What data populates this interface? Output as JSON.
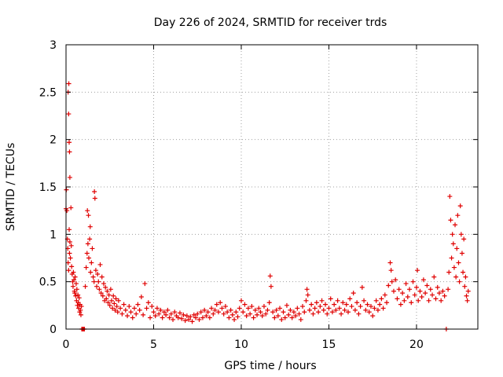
{
  "chart_data": {
    "type": "scatter",
    "title": "Day 226 of 2024, SRMTID for receiver trds",
    "xlabel": "GPS time / hours",
    "ylabel": "SRMTID / TECUs",
    "xlim": [
      0,
      23.5
    ],
    "ylim": [
      0,
      3
    ],
    "grid": true,
    "marker": "+",
    "color": "#e00000",
    "x_ticks": [
      {
        "value": 0,
        "label": "0"
      },
      {
        "value": 5,
        "label": "5"
      },
      {
        "value": 10,
        "label": "10"
      },
      {
        "value": 15,
        "label": "15"
      },
      {
        "value": 20,
        "label": "20"
      }
    ],
    "y_ticks": [
      {
        "value": 0,
        "label": "0"
      },
      {
        "value": 0.5,
        "label": "0.5"
      },
      {
        "value": 1,
        "label": "1"
      },
      {
        "value": 1.5,
        "label": "1.5"
      },
      {
        "value": 2,
        "label": "2"
      },
      {
        "value": 2.5,
        "label": "2.5"
      },
      {
        "value": 3,
        "label": "3"
      }
    ],
    "series": [
      {
        "name": "SRMTID",
        "points": [
          [
            0.0,
            1.27
          ],
          [
            0.02,
            1.47
          ],
          [
            0.05,
            1.25
          ],
          [
            0.08,
            0.95
          ],
          [
            0.1,
            0.85
          ],
          [
            0.12,
            0.7
          ],
          [
            0.15,
            0.62
          ],
          [
            0.18,
            1.05
          ],
          [
            0.2,
            0.8
          ],
          [
            0.22,
            0.92
          ],
          [
            0.25,
            0.75
          ],
          [
            0.28,
            1.28
          ],
          [
            0.3,
            0.88
          ],
          [
            0.32,
            0.66
          ],
          [
            0.35,
            0.58
          ],
          [
            0.38,
            0.5
          ],
          [
            0.12,
            2.5
          ],
          [
            0.15,
            2.27
          ],
          [
            0.18,
            1.97
          ],
          [
            0.2,
            1.87
          ],
          [
            0.22,
            1.6
          ],
          [
            0.16,
            2.59
          ],
          [
            0.4,
            0.45
          ],
          [
            0.42,
            0.6
          ],
          [
            0.45,
            0.52
          ],
          [
            0.48,
            0.4
          ],
          [
            0.5,
            0.38
          ],
          [
            0.52,
            0.55
          ],
          [
            0.55,
            0.35
          ],
          [
            0.58,
            0.48
          ],
          [
            0.6,
            0.3
          ],
          [
            0.62,
            0.42
          ],
          [
            0.65,
            0.25
          ],
          [
            0.68,
            0.36
          ],
          [
            0.7,
            0.28
          ],
          [
            0.72,
            0.22
          ],
          [
            0.75,
            0.33
          ],
          [
            0.78,
            0.18
          ],
          [
            0.8,
            0.26
          ],
          [
            0.82,
            0.2
          ],
          [
            0.85,
            0.15
          ],
          [
            0.88,
            0.24
          ],
          [
            0.9,
            0.0
          ],
          [
            0.95,
            0.0
          ],
          [
            1.0,
            0.0
          ],
          [
            1.05,
            0.0
          ],
          [
            1.1,
            0.45
          ],
          [
            1.15,
            0.65
          ],
          [
            1.2,
            0.8
          ],
          [
            1.22,
            1.25
          ],
          [
            1.25,
            0.9
          ],
          [
            1.28,
            1.2
          ],
          [
            1.3,
            0.75
          ],
          [
            1.35,
            0.95
          ],
          [
            1.38,
            1.08
          ],
          [
            1.4,
            0.6
          ],
          [
            1.45,
            0.7
          ],
          [
            1.5,
            0.85
          ],
          [
            1.55,
            0.55
          ],
          [
            1.6,
            0.5
          ],
          [
            1.62,
            1.45
          ],
          [
            1.65,
            1.38
          ],
          [
            1.7,
            0.62
          ],
          [
            1.75,
            0.45
          ],
          [
            1.8,
            0.58
          ],
          [
            1.85,
            0.5
          ],
          [
            1.9,
            0.42
          ],
          [
            1.95,
            0.68
          ],
          [
            2.0,
            0.38
          ],
          [
            2.05,
            0.55
          ],
          [
            2.1,
            0.35
          ],
          [
            2.15,
            0.48
          ],
          [
            2.2,
            0.3
          ],
          [
            2.25,
            0.44
          ],
          [
            2.3,
            0.32
          ],
          [
            2.35,
            0.4
          ],
          [
            2.4,
            0.28
          ],
          [
            2.45,
            0.36
          ],
          [
            2.5,
            0.25
          ],
          [
            2.55,
            0.42
          ],
          [
            2.6,
            0.3
          ],
          [
            2.65,
            0.22
          ],
          [
            2.7,
            0.35
          ],
          [
            2.75,
            0.27
          ],
          [
            2.8,
            0.2
          ],
          [
            2.85,
            0.32
          ],
          [
            2.9,
            0.24
          ],
          [
            2.95,
            0.18
          ],
          [
            3.0,
            0.3
          ],
          [
            3.1,
            0.22
          ],
          [
            3.2,
            0.16
          ],
          [
            3.3,
            0.26
          ],
          [
            3.4,
            0.2
          ],
          [
            3.5,
            0.14
          ],
          [
            3.6,
            0.24
          ],
          [
            3.7,
            0.18
          ],
          [
            3.8,
            0.12
          ],
          [
            3.9,
            0.22
          ],
          [
            4.0,
            0.16
          ],
          [
            4.1,
            0.26
          ],
          [
            4.2,
            0.2
          ],
          [
            4.3,
            0.34
          ],
          [
            4.4,
            0.15
          ],
          [
            4.5,
            0.48
          ],
          [
            4.6,
            0.22
          ],
          [
            4.7,
            0.28
          ],
          [
            4.8,
            0.12
          ],
          [
            4.9,
            0.24
          ],
          [
            5.0,
            0.18
          ],
          [
            5.1,
            0.14
          ],
          [
            5.2,
            0.22
          ],
          [
            5.3,
            0.16
          ],
          [
            5.4,
            0.2
          ],
          [
            5.5,
            0.12
          ],
          [
            5.6,
            0.18
          ],
          [
            5.7,
            0.15
          ],
          [
            5.8,
            0.2
          ],
          [
            5.9,
            0.12
          ],
          [
            6.0,
            0.16
          ],
          [
            6.1,
            0.1
          ],
          [
            6.2,
            0.18
          ],
          [
            6.3,
            0.14
          ],
          [
            6.4,
            0.12
          ],
          [
            6.5,
            0.17
          ],
          [
            6.6,
            0.11
          ],
          [
            6.7,
            0.15
          ],
          [
            6.8,
            0.09
          ],
          [
            6.9,
            0.14
          ],
          [
            7.0,
            0.1
          ],
          [
            7.1,
            0.13
          ],
          [
            7.2,
            0.08
          ],
          [
            7.3,
            0.15
          ],
          [
            7.4,
            0.12
          ],
          [
            7.5,
            0.16
          ],
          [
            7.6,
            0.1
          ],
          [
            7.7,
            0.18
          ],
          [
            7.8,
            0.12
          ],
          [
            7.9,
            0.2
          ],
          [
            8.0,
            0.14
          ],
          [
            8.1,
            0.18
          ],
          [
            8.2,
            0.12
          ],
          [
            8.3,
            0.22
          ],
          [
            8.4,
            0.16
          ],
          [
            8.5,
            0.2
          ],
          [
            8.6,
            0.26
          ],
          [
            8.7,
            0.18
          ],
          [
            8.8,
            0.28
          ],
          [
            8.9,
            0.22
          ],
          [
            9.0,
            0.16
          ],
          [
            9.1,
            0.24
          ],
          [
            9.2,
            0.18
          ],
          [
            9.3,
            0.12
          ],
          [
            9.4,
            0.2
          ],
          [
            9.5,
            0.15
          ],
          [
            9.6,
            0.1
          ],
          [
            9.7,
            0.18
          ],
          [
            9.8,
            0.13
          ],
          [
            9.9,
            0.22
          ],
          [
            10.0,
            0.3
          ],
          [
            10.1,
            0.18
          ],
          [
            10.2,
            0.26
          ],
          [
            10.3,
            0.14
          ],
          [
            10.4,
            0.22
          ],
          [
            10.5,
            0.16
          ],
          [
            10.6,
            0.24
          ],
          [
            10.7,
            0.12
          ],
          [
            10.8,
            0.2
          ],
          [
            10.9,
            0.15
          ],
          [
            11.0,
            0.22
          ],
          [
            11.1,
            0.18
          ],
          [
            11.2,
            0.14
          ],
          [
            11.3,
            0.24
          ],
          [
            11.4,
            0.16
          ],
          [
            11.5,
            0.2
          ],
          [
            11.6,
            0.28
          ],
          [
            11.65,
            0.56
          ],
          [
            11.7,
            0.45
          ],
          [
            11.8,
            0.18
          ],
          [
            11.9,
            0.12
          ],
          [
            12.0,
            0.2
          ],
          [
            12.1,
            0.14
          ],
          [
            12.2,
            0.22
          ],
          [
            12.3,
            0.1
          ],
          [
            12.4,
            0.18
          ],
          [
            12.5,
            0.12
          ],
          [
            12.6,
            0.25
          ],
          [
            12.7,
            0.15
          ],
          [
            12.8,
            0.2
          ],
          [
            12.9,
            0.12
          ],
          [
            13.0,
            0.18
          ],
          [
            13.1,
            0.14
          ],
          [
            13.2,
            0.22
          ],
          [
            13.3,
            0.16
          ],
          [
            13.4,
            0.1
          ],
          [
            13.5,
            0.24
          ],
          [
            13.6,
            0.18
          ],
          [
            13.7,
            0.3
          ],
          [
            13.75,
            0.42
          ],
          [
            13.8,
            0.36
          ],
          [
            13.9,
            0.2
          ],
          [
            14.0,
            0.26
          ],
          [
            14.1,
            0.16
          ],
          [
            14.2,
            0.22
          ],
          [
            14.3,
            0.28
          ],
          [
            14.4,
            0.18
          ],
          [
            14.5,
            0.24
          ],
          [
            14.6,
            0.3
          ],
          [
            14.7,
            0.2
          ],
          [
            14.8,
            0.26
          ],
          [
            14.9,
            0.16
          ],
          [
            15.0,
            0.22
          ],
          [
            15.1,
            0.32
          ],
          [
            15.2,
            0.18
          ],
          [
            15.3,
            0.26
          ],
          [
            15.4,
            0.2
          ],
          [
            15.5,
            0.3
          ],
          [
            15.6,
            0.22
          ],
          [
            15.7,
            0.16
          ],
          [
            15.8,
            0.28
          ],
          [
            15.9,
            0.2
          ],
          [
            16.0,
            0.26
          ],
          [
            16.1,
            0.18
          ],
          [
            16.2,
            0.32
          ],
          [
            16.3,
            0.24
          ],
          [
            16.4,
            0.38
          ],
          [
            16.5,
            0.2
          ],
          [
            16.6,
            0.28
          ],
          [
            16.7,
            0.16
          ],
          [
            16.8,
            0.24
          ],
          [
            16.9,
            0.44
          ],
          [
            17.0,
            0.3
          ],
          [
            17.1,
            0.2
          ],
          [
            17.2,
            0.26
          ],
          [
            17.3,
            0.18
          ],
          [
            17.4,
            0.24
          ],
          [
            17.5,
            0.14
          ],
          [
            17.6,
            0.22
          ],
          [
            17.7,
            0.3
          ],
          [
            17.8,
            0.2
          ],
          [
            17.9,
            0.26
          ],
          [
            18.0,
            0.32
          ],
          [
            18.1,
            0.22
          ],
          [
            18.2,
            0.36
          ],
          [
            18.3,
            0.28
          ],
          [
            18.4,
            0.46
          ],
          [
            18.5,
            0.7
          ],
          [
            18.55,
            0.62
          ],
          [
            18.6,
            0.5
          ],
          [
            18.7,
            0.4
          ],
          [
            18.8,
            0.52
          ],
          [
            18.9,
            0.32
          ],
          [
            19.0,
            0.42
          ],
          [
            19.1,
            0.26
          ],
          [
            19.2,
            0.38
          ],
          [
            19.3,
            0.3
          ],
          [
            19.4,
            0.48
          ],
          [
            19.5,
            0.34
          ],
          [
            19.6,
            0.42
          ],
          [
            19.7,
            0.28
          ],
          [
            19.8,
            0.5
          ],
          [
            19.9,
            0.36
          ],
          [
            20.0,
            0.44
          ],
          [
            20.05,
            0.62
          ],
          [
            20.1,
            0.3
          ],
          [
            20.2,
            0.4
          ],
          [
            20.3,
            0.34
          ],
          [
            20.4,
            0.52
          ],
          [
            20.5,
            0.38
          ],
          [
            20.6,
            0.46
          ],
          [
            20.7,
            0.3
          ],
          [
            20.8,
            0.42
          ],
          [
            20.9,
            0.36
          ],
          [
            21.0,
            0.55
          ],
          [
            21.1,
            0.32
          ],
          [
            21.2,
            0.44
          ],
          [
            21.3,
            0.38
          ],
          [
            21.4,
            0.3
          ],
          [
            21.5,
            0.4
          ],
          [
            21.6,
            0.35
          ],
          [
            21.7,
            0.0
          ],
          [
            21.8,
            0.42
          ],
          [
            21.85,
            0.6
          ],
          [
            21.9,
            1.4
          ],
          [
            21.95,
            1.15
          ],
          [
            22.0,
            0.75
          ],
          [
            22.05,
            1.0
          ],
          [
            22.1,
            0.9
          ],
          [
            22.15,
            0.65
          ],
          [
            22.2,
            1.1
          ],
          [
            22.25,
            0.55
          ],
          [
            22.3,
            0.85
          ],
          [
            22.35,
            1.2
          ],
          [
            22.4,
            0.7
          ],
          [
            22.45,
            0.5
          ],
          [
            22.5,
            1.3
          ],
          [
            22.55,
            1.0
          ],
          [
            22.6,
            0.8
          ],
          [
            22.65,
            0.6
          ],
          [
            22.7,
            0.95
          ],
          [
            22.75,
            0.45
          ],
          [
            22.8,
            0.55
          ],
          [
            22.85,
            0.35
          ],
          [
            22.9,
            0.3
          ],
          [
            22.95,
            0.4
          ]
        ]
      }
    ]
  }
}
